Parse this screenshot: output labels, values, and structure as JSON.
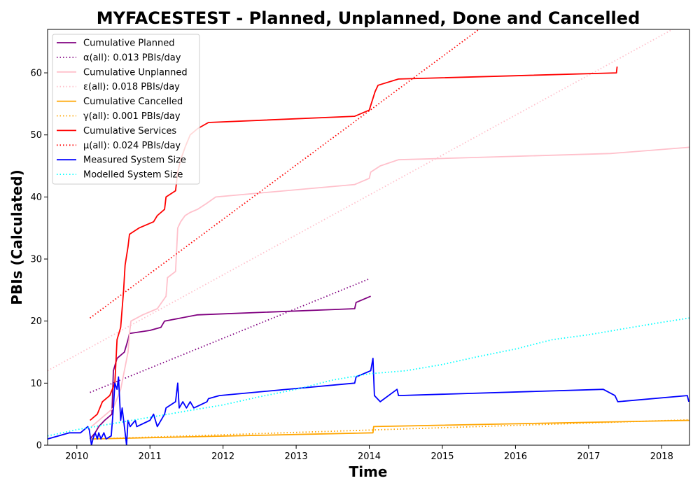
{
  "chart_data": {
    "type": "line",
    "title": "MYFACESTEST - Planned, Unplanned, Done  and Cancelled",
    "xlabel": "Time",
    "ylabel": "PBIs (Calculated)",
    "xlim": [
      2009.6,
      2018.38
    ],
    "ylim": [
      0,
      67
    ],
    "x_ticks": [
      2010,
      2011,
      2012,
      2013,
      2014,
      2015,
      2016,
      2017,
      2018
    ],
    "y_ticks": [
      0,
      10,
      20,
      30,
      40,
      50,
      60
    ],
    "grid": false,
    "legend_position": "top-left",
    "series": [
      {
        "name": "Cumulative Planned",
        "color": "#800080",
        "style": "solid",
        "x": [
          2010.18,
          2010.25,
          2010.3,
          2010.38,
          2010.48,
          2010.5,
          2010.55,
          2010.65,
          2010.7,
          2010.72,
          2011.0,
          2011.15,
          2011.2,
          2011.65,
          2013.8,
          2013.82,
          2014.02
        ],
        "y": [
          1,
          2,
          3,
          4,
          5,
          12,
          14,
          15,
          17,
          18,
          18.5,
          19,
          20,
          21,
          22,
          23,
          24
        ]
      },
      {
        "name": "α(all): 0.013 PBIs/day",
        "color": "#800080",
        "style": "dotted",
        "x": [
          2010.18,
          2014.0
        ],
        "y": [
          8.5,
          26.8
        ]
      },
      {
        "name": "Cumulative Unplanned",
        "color": "#ffc0cb",
        "style": "solid",
        "x": [
          2010.2,
          2010.5,
          2010.6,
          2010.7,
          2010.72,
          2010.74,
          2010.9,
          2011.1,
          2011.22,
          2011.24,
          2011.35,
          2011.38,
          2011.42,
          2011.48,
          2011.55,
          2011.65,
          2011.78,
          2011.9,
          2013.8,
          2014.0,
          2014.02,
          2014.15,
          2014.4,
          2017.3,
          2018.38
        ],
        "y": [
          3,
          6,
          9,
          15,
          18,
          20,
          21,
          22,
          24,
          27,
          28,
          35,
          36,
          37,
          37.5,
          38,
          39,
          40,
          42,
          43,
          44,
          45,
          46,
          47,
          48
        ]
      },
      {
        "name": "ε(all): 0.018 PBIs/day",
        "color": "#ffc0cb",
        "style": "dotted",
        "x": [
          2009.6,
          2018.38
        ],
        "y": [
          12,
          68.5
        ]
      },
      {
        "name": "Cumulative Cancelled",
        "color": "#ffa500",
        "style": "solid",
        "x": [
          2010.2,
          2014.05,
          2014.06,
          2018.38
        ],
        "y": [
          1,
          2,
          3,
          4
        ]
      },
      {
        "name": "γ(all): 0.001 PBIs/day",
        "color": "#ffa500",
        "style": "dotted",
        "x": [
          2010.2,
          2018.38
        ],
        "y": [
          1,
          4.1
        ]
      },
      {
        "name": "Cumulative Services",
        "color": "#ff0000",
        "style": "solid",
        "x": [
          2010.18,
          2010.28,
          2010.35,
          2010.45,
          2010.52,
          2010.55,
          2010.6,
          2010.62,
          2010.64,
          2010.66,
          2010.7,
          2010.72,
          2010.85,
          2011.05,
          2011.1,
          2011.2,
          2011.22,
          2011.35,
          2011.38,
          2011.42,
          2011.48,
          2011.55,
          2011.65,
          2011.8,
          2013.8,
          2014.0,
          2014.08,
          2014.12,
          2014.4,
          2017.38,
          2017.39
        ],
        "y": [
          4,
          5,
          7,
          8,
          10,
          17,
          19,
          22,
          25,
          29,
          32,
          34,
          35,
          36,
          37,
          38,
          40,
          41,
          44,
          46,
          48,
          50,
          51,
          52,
          53,
          54,
          57,
          58,
          59,
          60,
          61
        ]
      },
      {
        "name": "μ(all): 0.024 PBIs/day",
        "color": "#ff0000",
        "style": "dotted",
        "x": [
          2010.18,
          2015.5
        ],
        "y": [
          20.5,
          67
        ]
      },
      {
        "name": "Measured System Size",
        "color": "#0000ff",
        "style": "solid",
        "x": [
          2009.6,
          2009.9,
          2010.05,
          2010.15,
          2010.17,
          2010.2,
          2010.22,
          2010.25,
          2010.28,
          2010.3,
          2010.33,
          2010.37,
          2010.4,
          2010.47,
          2010.5,
          2010.52,
          2010.55,
          2010.57,
          2010.6,
          2010.62,
          2010.65,
          2010.67,
          2010.68,
          2010.7,
          2010.73,
          2010.8,
          2010.82,
          2011.0,
          2011.05,
          2011.1,
          2011.2,
          2011.22,
          2011.35,
          2011.38,
          2011.4,
          2011.45,
          2011.5,
          2011.55,
          2011.6,
          2011.78,
          2011.8,
          2011.95,
          2013.8,
          2013.82,
          2014.02,
          2014.05,
          2014.07,
          2014.15,
          2014.38,
          2014.4,
          2017.2,
          2017.36,
          2017.4,
          2018.35,
          2018.37
        ],
        "y": [
          1,
          2,
          2,
          3,
          2.5,
          0,
          1,
          2,
          1,
          2,
          1,
          2,
          1,
          1.5,
          6,
          10,
          9,
          11,
          4,
          6,
          3,
          1,
          0,
          4,
          3,
          4,
          3,
          4,
          5,
          3,
          5,
          6,
          7,
          10,
          6,
          7,
          6,
          7,
          6,
          7,
          7.5,
          8,
          10,
          11,
          12,
          14,
          8,
          7,
          9,
          8,
          9,
          8,
          7,
          8,
          7
        ]
      },
      {
        "name": "Modelled System Size",
        "color": "#00ffff",
        "style": "dotted",
        "x": [
          2009.6,
          2010.0,
          2010.5,
          2011.0,
          2011.5,
          2012.0,
          2012.5,
          2013.0,
          2013.5,
          2014.0,
          2014.5,
          2015.0,
          2015.5,
          2016.0,
          2016.5,
          2017.0,
          2017.5,
          2018.0,
          2018.38
        ],
        "y": [
          1.5,
          2.5,
          3.5,
          4.5,
          5.5,
          6.5,
          7.8,
          9.0,
          10.5,
          11.5,
          12.0,
          13.0,
          14.3,
          15.5,
          17.0,
          17.8,
          18.8,
          19.8,
          20.5
        ]
      }
    ]
  }
}
